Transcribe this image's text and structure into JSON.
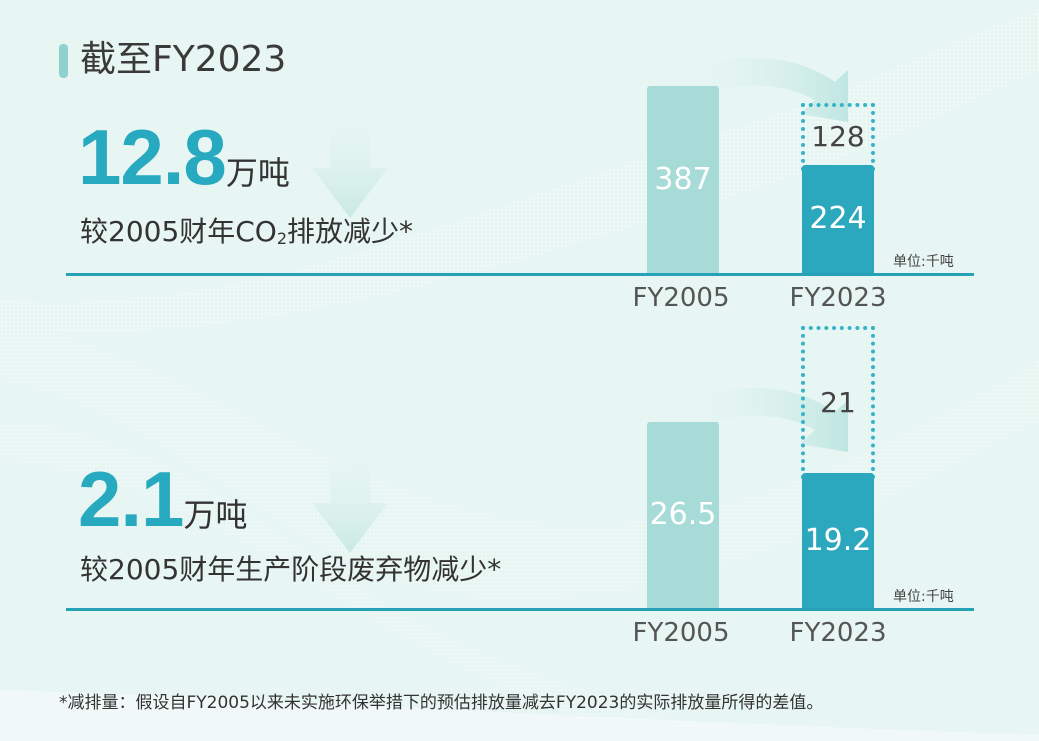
{
  "header": {
    "title": "截至FY2023"
  },
  "panels": [
    {
      "big_value": "12.8",
      "big_unit": "万吨",
      "desc_pre": "较2005财年CO",
      "desc_sub": "2",
      "desc_post": "排放减少*",
      "unit_note": "单位:千吨"
    },
    {
      "big_value": "2.1",
      "big_unit": "万吨",
      "desc_pre": "较2005财年生产阶段废弃物减少*",
      "desc_sub": "",
      "desc_post": "",
      "unit_note": "单位:千吨"
    }
  ],
  "chart_data": [
    {
      "type": "bar",
      "categories": [
        "FY2005",
        "FY2023"
      ],
      "values": [
        387,
        224
      ],
      "value_labels": [
        "387",
        "224"
      ],
      "reduction": 128,
      "reduction_label": "128",
      "unit": "单位:千吨",
      "colors": {
        "FY2005": "#a6dbd8",
        "FY2023": "#2ba8bd",
        "reduction_outline": "#35b4c9"
      }
    },
    {
      "type": "bar",
      "categories": [
        "FY2005",
        "FY2023"
      ],
      "values": [
        26.5,
        19.2
      ],
      "value_labels": [
        "26.5",
        "19.2"
      ],
      "reduction": 21,
      "reduction_label": "21",
      "unit": "单位:千吨",
      "colors": {
        "FY2005": "#a6dbd8",
        "FY2023": "#2ba8bd",
        "reduction_outline": "#35b4c9"
      }
    }
  ],
  "footnote": "*减排量：假设自FY2005以来未实施环保举措下的预估排放量减去FY2023的实际排放量所得的差值。"
}
